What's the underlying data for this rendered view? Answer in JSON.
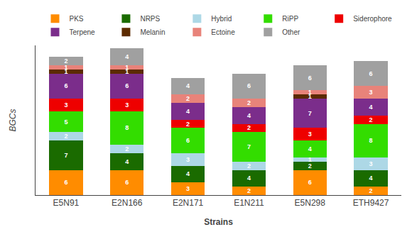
{
  "chart_data": {
    "type": "bar",
    "stacked": true,
    "xlabel": "Strains",
    "ylabel": "BGCs",
    "categories": [
      "E5N91",
      "E2N166",
      "E2N171",
      "E1N211",
      "E5N298",
      "ETH9427"
    ],
    "series": [
      {
        "name": "PKS",
        "color": "#FF8C00",
        "values": [
          6,
          6,
          3,
          2,
          6,
          2
        ]
      },
      {
        "name": "NRPS",
        "color": "#1A6B00",
        "values": [
          7,
          4,
          4,
          4,
          2,
          4
        ]
      },
      {
        "name": "Hybrid",
        "color": "#ADD8E6",
        "values": [
          2,
          2,
          3,
          2,
          1,
          3
        ]
      },
      {
        "name": "RiPP",
        "color": "#33DD00",
        "values": [
          5,
          8,
          6,
          7,
          4,
          8
        ]
      },
      {
        "name": "Siderophore",
        "color": "#EE0000",
        "values": [
          3,
          3,
          2,
          2,
          3,
          2
        ]
      },
      {
        "name": "Terpene",
        "color": "#7B2D8B",
        "values": [
          6,
          6,
          4,
          4,
          7,
          4
        ]
      },
      {
        "name": "Melanin",
        "color": "#5C2A00",
        "values": [
          1,
          1,
          0,
          0,
          1,
          0
        ]
      },
      {
        "name": "Ectoine",
        "color": "#E8837A",
        "values": [
          1,
          1,
          2,
          2,
          1,
          3
        ]
      },
      {
        "name": "Other",
        "color": "#A0A0A0",
        "values": [
          2,
          4,
          4,
          6,
          6,
          6
        ]
      }
    ],
    "ylim": [
      0,
      35.7
    ],
    "grid": false,
    "legend": "top",
    "data_labels": true,
    "tick_labels": "x"
  }
}
